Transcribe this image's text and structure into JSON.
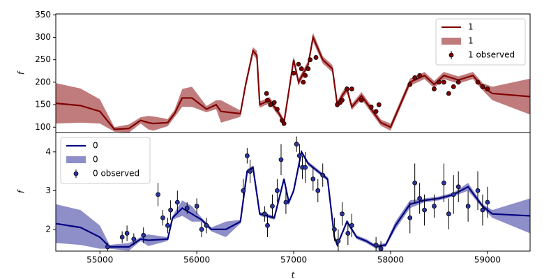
{
  "chart_data": [
    {
      "type": "line",
      "ylabel": "f",
      "xlim": [
        54545,
        59440
      ],
      "ylim": [
        88,
        352
      ],
      "yticks": [
        100,
        150,
        200,
        250,
        300,
        350
      ],
      "legend": "upper right",
      "series": [
        {
          "name": "1",
          "kind": "line",
          "color": "#800000",
          "x": [
            54545,
            54800,
            55000,
            55150,
            55300,
            55420,
            55500,
            55550,
            55700,
            55770,
            55850,
            55950,
            56100,
            56200,
            56250,
            56450,
            56500,
            56580,
            56620,
            56650,
            56750,
            56850,
            56900,
            57000,
            57050,
            57150,
            57200,
            57300,
            57400,
            57450,
            57500,
            57550,
            57600,
            57700,
            57800,
            57900,
            58000,
            58100,
            58200,
            58350,
            58450,
            58550,
            58700,
            58850,
            58950,
            59050,
            59440
          ],
          "values": [
            153,
            148,
            135,
            95,
            97,
            115,
            110,
            108,
            110,
            130,
            165,
            165,
            140,
            150,
            135,
            130,
            190,
            270,
            260,
            150,
            160,
            130,
            110,
            250,
            200,
            240,
            300,
            250,
            230,
            150,
            170,
            185,
            145,
            170,
            140,
            110,
            100,
            150,
            200,
            215,
            195,
            215,
            205,
            215,
            190,
            175,
            168
          ]
        },
        {
          "name": "1",
          "kind": "band",
          "color": "#b56565",
          "x": [
            54545,
            54800,
            55000,
            55150,
            55300,
            55420,
            55500,
            55550,
            55700,
            55770,
            55850,
            55950,
            56100,
            56200,
            56250,
            56450,
            56500,
            56580,
            56620,
            56650,
            56750,
            56850,
            56900,
            57000,
            57050,
            57150,
            57200,
            57300,
            57400,
            57450,
            57500,
            57550,
            57600,
            57700,
            57800,
            57900,
            58000,
            58100,
            58200,
            58350,
            58450,
            58550,
            58700,
            58850,
            58950,
            59050,
            59440
          ],
          "lower": [
            108,
            110,
            108,
            90,
            88,
            108,
            95,
            92,
            102,
            122,
            145,
            145,
            133,
            140,
            110,
            123,
            182,
            262,
            250,
            143,
            153,
            123,
            103,
            242,
            192,
            232,
            290,
            242,
            222,
            143,
            162,
            177,
            138,
            162,
            132,
            103,
            92,
            142,
            192,
            207,
            187,
            207,
            197,
            207,
            182,
            160,
            128
          ],
          "upper": [
            198,
            186,
            162,
            100,
            106,
            122,
            125,
            124,
            118,
            138,
            185,
            190,
            147,
            160,
            160,
            137,
            198,
            278,
            270,
            157,
            167,
            137,
            117,
            258,
            208,
            248,
            310,
            258,
            238,
            157,
            178,
            193,
            152,
            178,
            148,
            117,
            108,
            158,
            208,
            223,
            203,
            223,
            213,
            223,
            198,
            190,
            208
          ]
        },
        {
          "name": "1 observed",
          "kind": "errorbar",
          "color": "#800000",
          "x": [
            56720,
            56730,
            56760,
            56800,
            56830,
            56880,
            56900,
            57000,
            57050,
            57080,
            57100,
            57120,
            57150,
            57170,
            57230,
            57450,
            57480,
            57500,
            57550,
            57600,
            57700,
            57800,
            57850,
            57880,
            58200,
            58250,
            58300,
            58450,
            58500,
            58550,
            58600,
            58650,
            58700,
            58900,
            58950,
            59000
          ],
          "values": [
            175,
            160,
            150,
            155,
            140,
            115,
            108,
            220,
            240,
            230,
            200,
            215,
            230,
            250,
            255,
            150,
            155,
            160,
            185,
            185,
            160,
            145,
            135,
            150,
            195,
            210,
            215,
            185,
            200,
            200,
            175,
            190,
            200,
            200,
            190,
            185
          ],
          "errors": [
            4,
            4,
            4,
            4,
            4,
            4,
            4,
            4,
            4,
            4,
            4,
            4,
            4,
            4,
            4,
            4,
            4,
            4,
            4,
            4,
            4,
            4,
            4,
            4,
            4,
            4,
            4,
            4,
            4,
            4,
            4,
            4,
            4,
            4,
            4,
            4
          ]
        }
      ]
    },
    {
      "type": "line",
      "ylabel": "f",
      "xlabel": "t",
      "xlim": [
        54545,
        59440
      ],
      "ylim": [
        1.44,
        4.5
      ],
      "xticks": [
        55000,
        56000,
        57000,
        58000,
        59000
      ],
      "yticks": [
        2,
        3,
        4
      ],
      "legend": "upper left",
      "series": [
        {
          "name": "0",
          "kind": "line",
          "color": "#000080",
          "x": [
            54545,
            54800,
            55000,
            55100,
            55300,
            55420,
            55500,
            55700,
            55750,
            55850,
            55950,
            56050,
            56150,
            56300,
            56450,
            56520,
            56580,
            56650,
            56800,
            56900,
            56950,
            57000,
            57080,
            57150,
            57250,
            57350,
            57420,
            57450,
            57550,
            57650,
            57750,
            57850,
            57950,
            58050,
            58200,
            58350,
            58500,
            58650,
            58800,
            58950,
            59050,
            59440
          ],
          "values": [
            2.15,
            2.05,
            1.8,
            1.55,
            1.55,
            1.75,
            1.72,
            1.75,
            2.3,
            2.55,
            2.4,
            2.25,
            2.0,
            2.0,
            2.2,
            3.5,
            3.6,
            2.4,
            2.3,
            3.3,
            2.7,
            3.0,
            4.0,
            3.7,
            3.5,
            3.3,
            1.8,
            1.6,
            2.2,
            1.8,
            1.7,
            1.55,
            1.6,
            2.1,
            2.65,
            2.75,
            2.8,
            2.9,
            3.1,
            2.6,
            2.4,
            2.35
          ]
        },
        {
          "name": "0",
          "kind": "band",
          "color": "#7a7abf",
          "x": [
            54545,
            54800,
            55000,
            55100,
            55300,
            55420,
            55500,
            55700,
            55750,
            55850,
            55950,
            56050,
            56150,
            56300,
            56450,
            56520,
            56580,
            56650,
            56800,
            56900,
            56950,
            57000,
            57080,
            57150,
            57250,
            57350,
            57420,
            57450,
            57550,
            57650,
            57750,
            57850,
            57950,
            58050,
            58200,
            58350,
            58500,
            58650,
            58800,
            58950,
            59050,
            59440
          ],
          "lower": [
            1.65,
            1.6,
            1.5,
            1.5,
            1.45,
            1.7,
            1.57,
            1.7,
            2.25,
            2.35,
            2.2,
            2.2,
            1.95,
            1.8,
            2.15,
            3.45,
            3.55,
            2.35,
            2.25,
            3.25,
            2.65,
            2.95,
            3.95,
            3.65,
            3.45,
            3.25,
            1.75,
            1.55,
            2.15,
            1.75,
            1.65,
            1.5,
            1.55,
            2.0,
            2.55,
            2.7,
            2.75,
            2.85,
            3.0,
            2.55,
            2.3,
            1.9
          ],
          "upper": [
            2.65,
            2.5,
            2.1,
            1.6,
            1.65,
            1.8,
            1.87,
            1.8,
            2.35,
            2.75,
            2.6,
            2.3,
            2.05,
            2.2,
            2.25,
            3.55,
            3.65,
            2.45,
            2.35,
            3.35,
            2.75,
            3.05,
            4.05,
            3.75,
            3.55,
            3.35,
            1.85,
            1.65,
            2.25,
            1.85,
            1.75,
            1.6,
            1.65,
            2.2,
            2.75,
            2.8,
            2.85,
            2.95,
            3.2,
            2.65,
            2.5,
            2.8
          ]
        },
        {
          "name": "0 observed",
          "kind": "errorbar",
          "color": "#2a35a0",
          "x": [
            55080,
            55230,
            55280,
            55350,
            55450,
            55600,
            55650,
            55700,
            55730,
            55800,
            55900,
            56000,
            56050,
            56100,
            56480,
            56520,
            56550,
            56700,
            56730,
            56780,
            56830,
            56870,
            56920,
            57030,
            57060,
            57090,
            57120,
            57200,
            57250,
            57300,
            57420,
            57460,
            57500,
            57560,
            57600,
            57850,
            57900,
            58200,
            58250,
            58300,
            58350,
            58450,
            58550,
            58600,
            58650,
            58700,
            58800,
            58900,
            58950,
            59000
          ],
          "values": [
            1.55,
            1.8,
            1.9,
            1.75,
            1.85,
            2.9,
            2.3,
            2.1,
            2.5,
            2.7,
            2.55,
            2.6,
            2.0,
            2.1,
            3.0,
            3.9,
            3.5,
            2.4,
            2.1,
            2.6,
            3.0,
            3.8,
            2.7,
            4.2,
            3.9,
            3.6,
            3.6,
            3.3,
            3.0,
            3.4,
            2.0,
            1.7,
            2.4,
            1.9,
            2.1,
            1.6,
            1.5,
            2.3,
            3.2,
            2.8,
            2.5,
            2.6,
            3.2,
            2.4,
            2.9,
            3.1,
            2.6,
            3.0,
            2.5,
            2.7
          ],
          "errors": [
            0.1,
            0.15,
            0.2,
            0.15,
            0.2,
            0.3,
            0.2,
            0.2,
            0.25,
            0.3,
            0.15,
            0.2,
            0.2,
            0.2,
            0.3,
            0.2,
            0.3,
            0.2,
            0.3,
            0.3,
            0.3,
            0.4,
            0.3,
            0.2,
            0.3,
            0.3,
            0.4,
            0.3,
            0.3,
            0.3,
            0.3,
            0.3,
            0.3,
            0.3,
            0.3,
            0.2,
            0.2,
            0.4,
            0.5,
            0.4,
            0.4,
            0.3,
            0.5,
            0.4,
            0.5,
            0.4,
            0.4,
            0.5,
            0.4,
            0.4
          ]
        }
      ]
    }
  ]
}
